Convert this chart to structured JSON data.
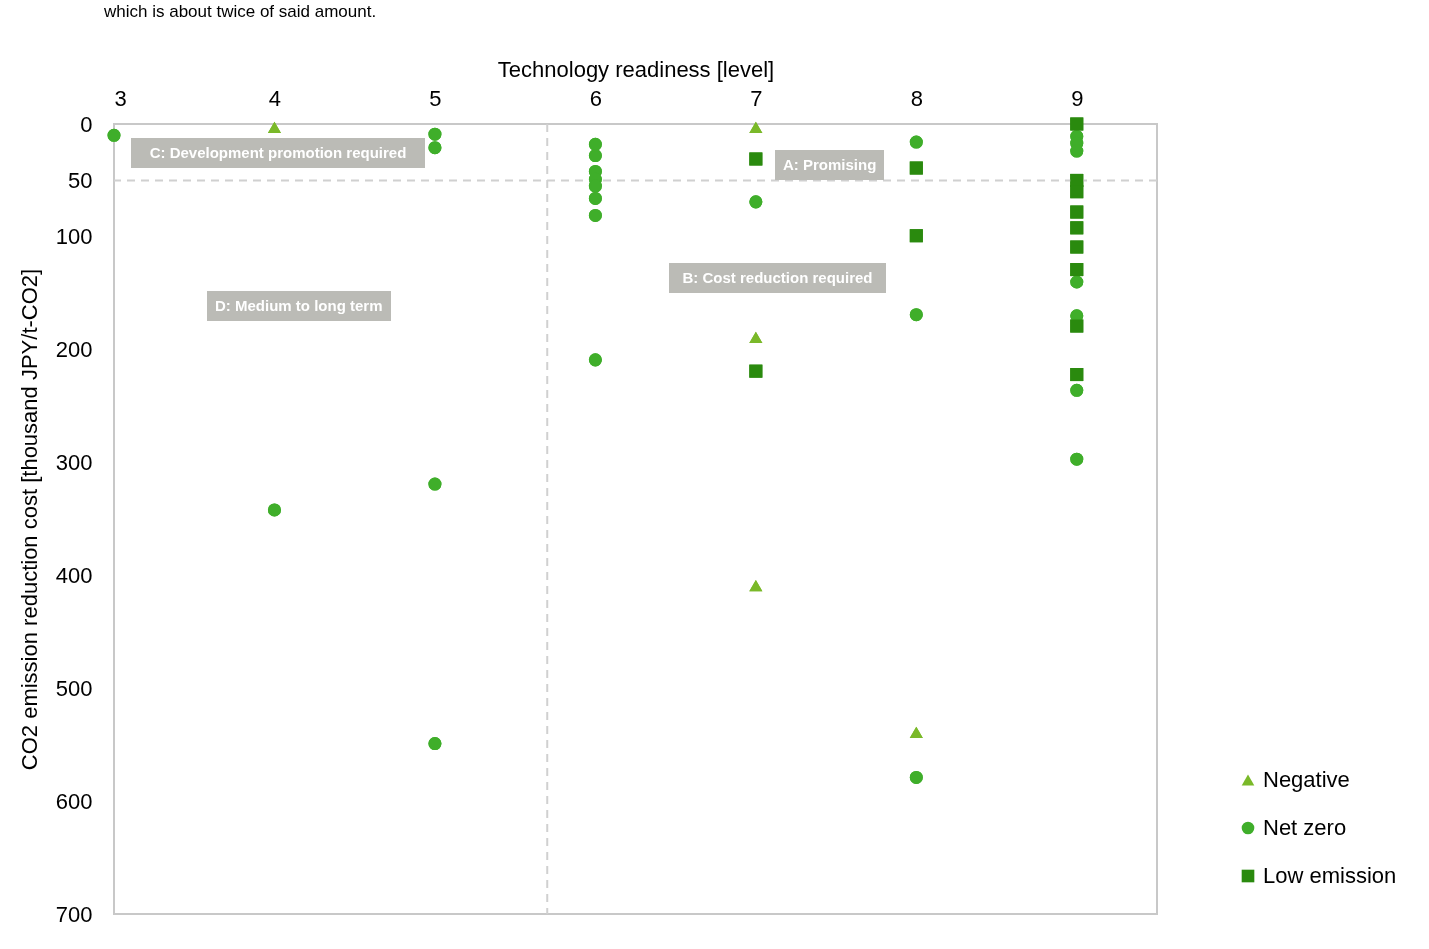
{
  "chart_data": {
    "type": "scatter",
    "xlabel": "Technology readiness [level]",
    "ylabel": "CO2 emission reduction cost [thousand JPY/t-CO2]",
    "xlim": [
      3,
      9.5
    ],
    "xticks": [
      3,
      4,
      5,
      6,
      7,
      8,
      9
    ],
    "ylim": [
      700,
      0
    ],
    "yticks": [
      0,
      50,
      100,
      200,
      300,
      400,
      500,
      600,
      700
    ],
    "grid": false,
    "legend": "bottom right",
    "series": [
      {
        "name": "Negative",
        "color": "#7ab929",
        "marker": "triangle",
        "x": [
          4,
          7,
          7,
          7,
          8
        ],
        "values": [
          3,
          3,
          189,
          409,
          539
        ]
      },
      {
        "name": "Net zero",
        "color": "#3fae2a",
        "marker": "circle",
        "x": [
          3,
          4,
          5,
          5,
          5,
          5,
          6,
          6,
          6,
          6,
          6,
          6,
          6,
          6,
          7,
          8,
          8,
          8,
          9,
          9,
          9,
          9,
          9,
          9,
          9
        ],
        "values": [
          10,
          342,
          9,
          21,
          319,
          549,
          18,
          28,
          42,
          49,
          55,
          66,
          81,
          209,
          69,
          16,
          169,
          579,
          11,
          17,
          24,
          140,
          170,
          236,
          297
        ]
      },
      {
        "name": "Low emission",
        "color": "#2a8a0e",
        "marker": "square",
        "x": [
          7,
          7,
          8,
          8,
          9,
          9,
          9,
          9,
          9,
          9,
          9,
          9,
          9
        ],
        "values": [
          31,
          219,
          39,
          99,
          0,
          50,
          60,
          78,
          92,
          109,
          129,
          179,
          222
        ]
      }
    ],
    "ref_lines": [
      {
        "axis": "y",
        "value": 50,
        "color": "#d0d0d0",
        "line_style": "dashed"
      },
      {
        "axis": "x",
        "value": 5.7,
        "color": "#d0d0d0",
        "line_style": "dashed"
      }
    ],
    "annotations": [
      "which is about twice of said amount.",
      "C: Development promotion required",
      "A: Promising",
      "B: Cost reduction required",
      "D: Medium to long term"
    ]
  }
}
